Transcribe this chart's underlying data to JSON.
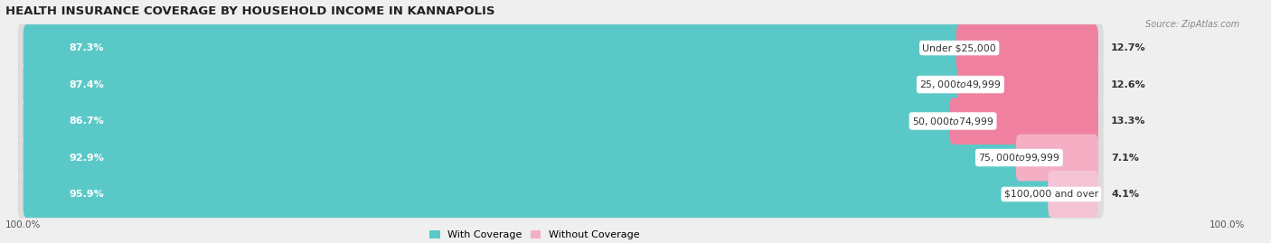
{
  "title": "HEALTH INSURANCE COVERAGE BY HOUSEHOLD INCOME IN KANNAPOLIS",
  "source": "Source: ZipAtlas.com",
  "categories": [
    "Under $25,000",
    "$25,000 to $49,999",
    "$50,000 to $74,999",
    "$75,000 to $99,999",
    "$100,000 and over"
  ],
  "with_coverage": [
    87.3,
    87.4,
    86.7,
    92.9,
    95.9
  ],
  "without_coverage": [
    12.7,
    12.6,
    13.3,
    7.1,
    4.1
  ],
  "color_coverage": "#5bc8c8",
  "color_without": "#f080a0",
  "color_without_last": "#f4afc4",
  "bar_height": 0.68,
  "bar_gap": 0.18,
  "title_fontsize": 9.5,
  "label_fontsize": 8.0,
  "cat_fontsize": 7.8,
  "tick_fontsize": 7.5,
  "legend_fontsize": 8.0,
  "bg_color": "#efefef",
  "bar_bg_color": "#dcdcdc",
  "text_color_white": "#ffffff",
  "text_color_dark": "#333333",
  "left_axis_label": "100.0%",
  "right_axis_label": "100.0%",
  "without_coverage_colors": [
    "#f080a0",
    "#f080a0",
    "#f080a0",
    "#f4afc4",
    "#f4c4d4"
  ]
}
